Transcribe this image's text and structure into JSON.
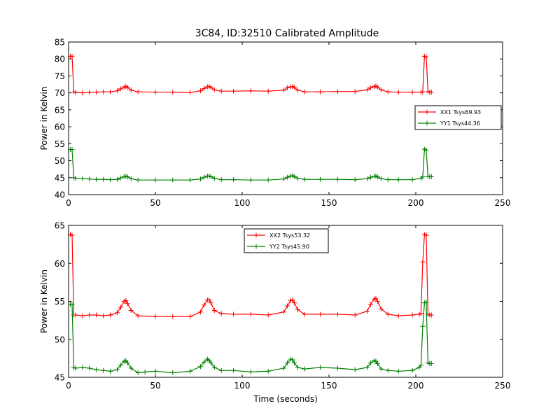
{
  "title": "3C84, ID:32510 Calibrated Amplitude",
  "chart_data": [
    {
      "type": "line",
      "title": "3C84, ID:32510 Calibrated Amplitude",
      "xlabel": "",
      "ylabel": "Power in Kelvin",
      "xlim": [
        0,
        250
      ],
      "ylim": [
        40,
        85
      ],
      "x_ticks": [
        0,
        50,
        100,
        150,
        200,
        250
      ],
      "y_ticks": [
        40,
        45,
        50,
        55,
        60,
        65,
        70,
        75,
        80,
        85
      ],
      "grid": false,
      "legend_position": "right",
      "series": [
        {
          "name": "XX1 Tsys69.93",
          "color": "#ff0000",
          "marker": "+",
          "x": [
            1,
            2,
            3,
            4,
            8,
            12,
            16,
            20,
            24,
            28,
            30,
            32,
            33,
            34,
            36,
            40,
            50,
            60,
            70,
            76,
            78,
            80,
            81,
            82,
            84,
            88,
            95,
            105,
            115,
            124,
            126,
            128,
            129,
            130,
            132,
            136,
            145,
            155,
            165,
            172,
            174,
            176,
            177,
            178,
            180,
            184,
            190,
            198,
            203,
            204,
            205,
            206,
            207,
            208,
            209
          ],
          "values": [
            80.8,
            80.8,
            70.3,
            70.1,
            70.0,
            70.1,
            70.2,
            70.3,
            70.3,
            70.6,
            71.2,
            71.7,
            71.9,
            71.6,
            70.8,
            70.3,
            70.2,
            70.2,
            70.1,
            70.6,
            71.3,
            71.8,
            71.9,
            71.6,
            70.9,
            70.5,
            70.5,
            70.6,
            70.5,
            70.8,
            71.5,
            71.8,
            71.9,
            71.6,
            70.8,
            70.3,
            70.3,
            70.4,
            70.4,
            70.9,
            71.5,
            71.9,
            72.0,
            71.7,
            70.9,
            70.3,
            70.2,
            70.2,
            70.2,
            70.3,
            80.8,
            80.6,
            70.4,
            70.2,
            70.2
          ]
        },
        {
          "name": "YY1 Tsys44.36",
          "color": "#008000",
          "marker": "+",
          "x": [
            1,
            2,
            3,
            4,
            8,
            12,
            16,
            20,
            24,
            28,
            30,
            32,
            33,
            34,
            36,
            40,
            50,
            60,
            70,
            76,
            78,
            80,
            81,
            82,
            84,
            88,
            95,
            105,
            115,
            124,
            126,
            128,
            129,
            130,
            132,
            136,
            145,
            155,
            165,
            172,
            174,
            176,
            177,
            178,
            180,
            184,
            190,
            198,
            203,
            204,
            205,
            206,
            207,
            208,
            209
          ],
          "values": [
            53.3,
            53.3,
            45.0,
            44.8,
            44.7,
            44.6,
            44.5,
            44.5,
            44.4,
            44.5,
            44.9,
            45.3,
            45.4,
            45.2,
            44.7,
            44.3,
            44.3,
            44.3,
            44.3,
            44.6,
            45.1,
            45.5,
            45.5,
            45.3,
            44.8,
            44.4,
            44.4,
            44.3,
            44.3,
            44.6,
            45.1,
            45.5,
            45.6,
            45.3,
            44.8,
            44.5,
            44.5,
            44.5,
            44.4,
            44.7,
            45.1,
            45.4,
            45.5,
            45.2,
            44.7,
            44.4,
            44.4,
            44.4,
            44.8,
            45.2,
            53.4,
            53.1,
            45.3,
            45.3,
            45.3
          ]
        }
      ]
    },
    {
      "type": "line",
      "title": "",
      "xlabel": "Time (seconds)",
      "ylabel": "Power in Kelvin",
      "xlim": [
        0,
        250
      ],
      "ylim": [
        45,
        65
      ],
      "x_ticks": [
        0,
        50,
        100,
        150,
        200,
        250
      ],
      "y_ticks": [
        45,
        50,
        55,
        60,
        65
      ],
      "grid": false,
      "legend_position": "top-center",
      "series": [
        {
          "name": "XX2 Tsys53.32",
          "color": "#ff0000",
          "marker": "+",
          "x": [
            1,
            2,
            3,
            4,
            8,
            12,
            16,
            20,
            24,
            28,
            30,
            32,
            33,
            34,
            36,
            40,
            50,
            60,
            70,
            76,
            78,
            80,
            81,
            82,
            84,
            88,
            95,
            105,
            115,
            124,
            126,
            128,
            129,
            130,
            132,
            136,
            145,
            155,
            165,
            172,
            174,
            176,
            177,
            178,
            180,
            184,
            190,
            198,
            202,
            203,
            204,
            205,
            206,
            207,
            208,
            209
          ],
          "values": [
            63.8,
            63.7,
            53.2,
            53.2,
            53.1,
            53.2,
            53.2,
            53.1,
            53.2,
            53.5,
            54.2,
            55.0,
            55.1,
            54.7,
            53.8,
            53.1,
            53.0,
            53.0,
            53.0,
            53.6,
            54.5,
            55.2,
            55.2,
            54.8,
            53.8,
            53.4,
            53.3,
            53.3,
            53.2,
            53.6,
            54.4,
            55.1,
            55.2,
            54.8,
            53.9,
            53.3,
            53.3,
            53.3,
            53.2,
            53.7,
            54.6,
            55.3,
            55.4,
            55.0,
            54.0,
            53.3,
            53.1,
            53.2,
            53.3,
            53.4,
            60.2,
            63.8,
            63.7,
            53.3,
            53.2,
            53.2
          ]
        },
        {
          "name": "YY2 Tsys45.90",
          "color": "#008000",
          "marker": "+",
          "x": [
            1,
            2,
            3,
            4,
            8,
            12,
            16,
            20,
            24,
            28,
            30,
            32,
            33,
            34,
            36,
            40,
            44,
            50,
            60,
            70,
            76,
            78,
            80,
            81,
            82,
            84,
            88,
            95,
            105,
            115,
            124,
            126,
            128,
            129,
            130,
            132,
            136,
            145,
            155,
            165,
            172,
            174,
            176,
            177,
            178,
            180,
            184,
            190,
            198,
            202,
            203,
            204,
            205,
            206,
            207,
            208,
            209
          ],
          "values": [
            54.6,
            54.6,
            46.3,
            46.2,
            46.3,
            46.2,
            46.0,
            45.9,
            45.8,
            46.0,
            46.6,
            47.1,
            47.2,
            46.9,
            46.2,
            45.6,
            45.7,
            45.8,
            45.6,
            45.8,
            46.4,
            47.0,
            47.4,
            47.2,
            46.9,
            46.3,
            45.9,
            45.9,
            45.7,
            45.8,
            46.2,
            46.9,
            47.4,
            47.3,
            46.9,
            46.3,
            46.1,
            46.3,
            46.2,
            46.0,
            46.3,
            46.9,
            47.2,
            47.1,
            46.8,
            46.1,
            45.9,
            45.8,
            45.9,
            46.3,
            46.6,
            51.7,
            54.8,
            54.9,
            46.9,
            46.8,
            46.8
          ]
        }
      ]
    }
  ]
}
